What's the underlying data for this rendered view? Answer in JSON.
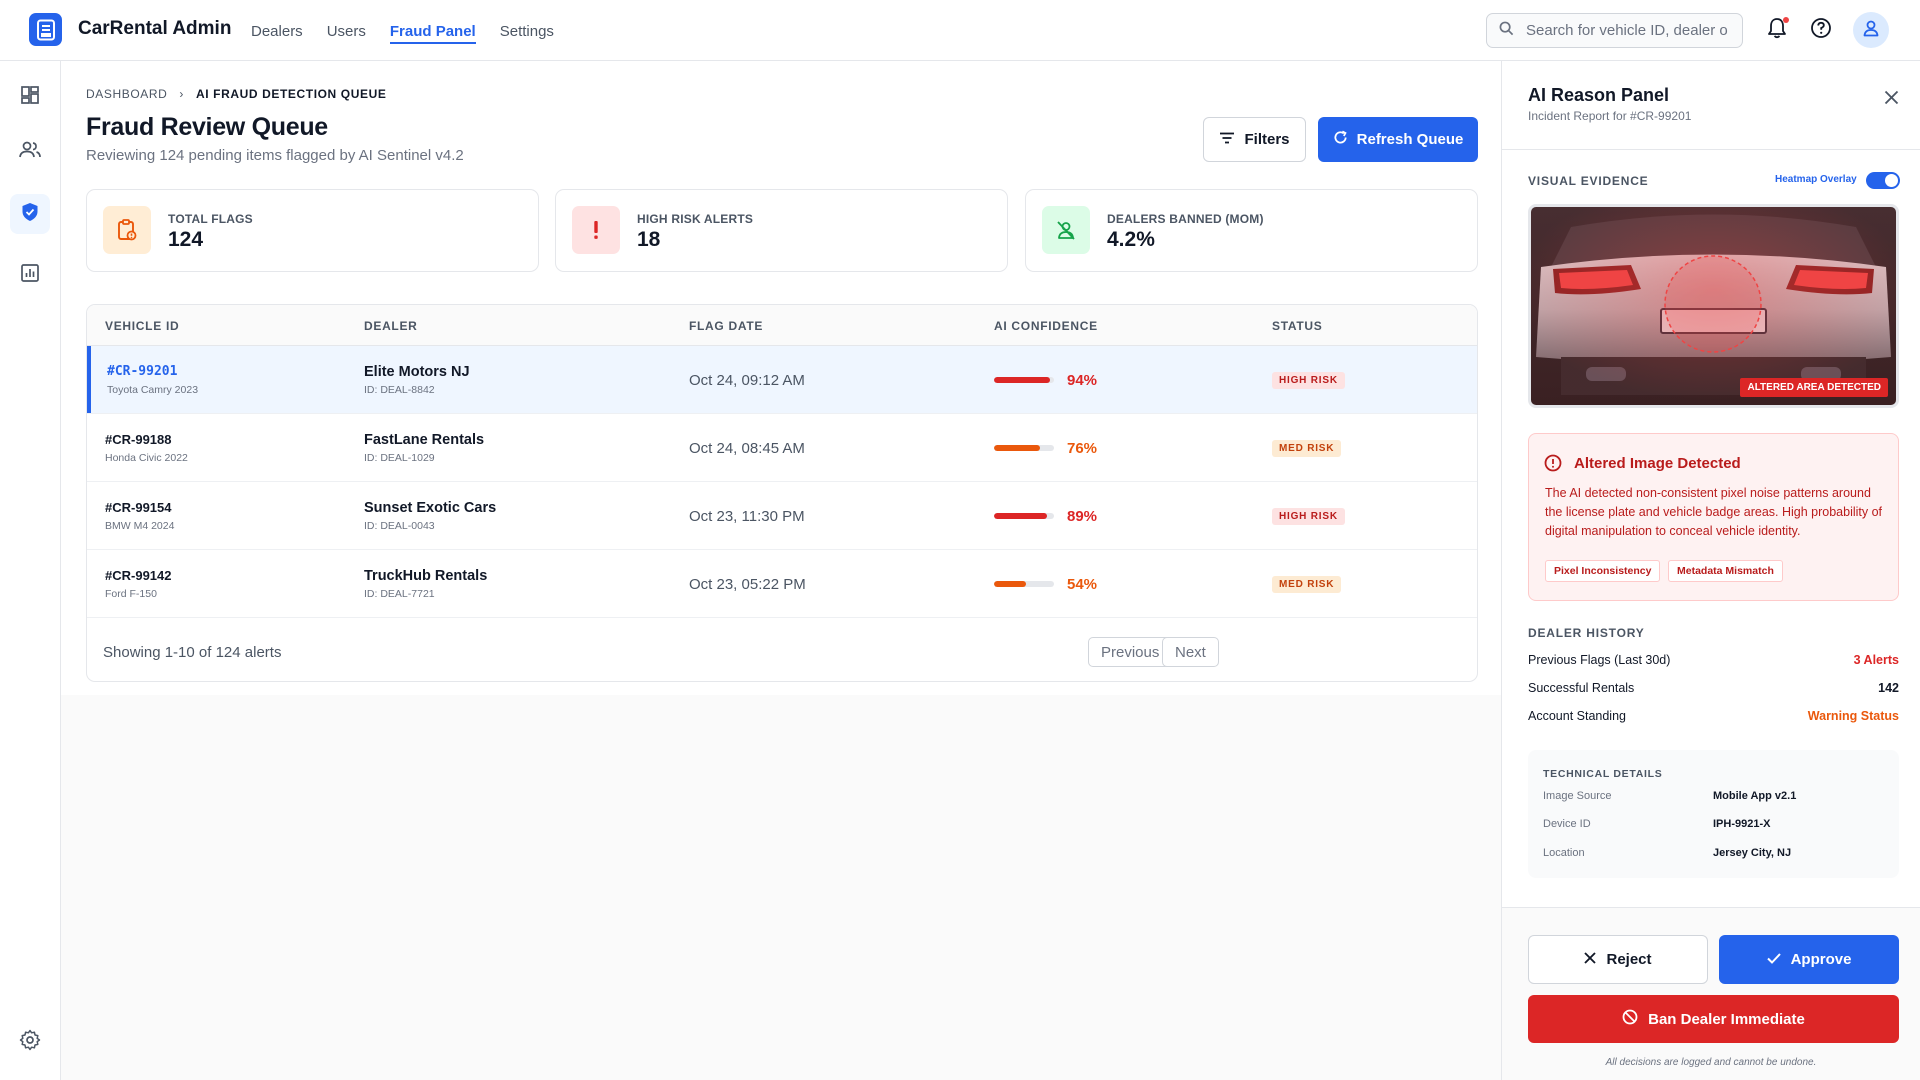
{
  "app": {
    "title": "CarRental Admin"
  },
  "nav": {
    "items": [
      "Dealers",
      "Users",
      "Fraud Panel",
      "Settings"
    ],
    "active": "Fraud Panel"
  },
  "search": {
    "placeholder": "Search for vehicle ID, dealer o"
  },
  "breadcrumb": {
    "root": "DASHBOARD",
    "separator": "›",
    "current": "AI FRAUD DETECTION QUEUE"
  },
  "page": {
    "title": "Fraud Review Queue",
    "subtitle": "Reviewing 124 pending items flagged by AI Sentinel v4.2",
    "filters_label": "Filters",
    "refresh_label": "Refresh Queue"
  },
  "stats": [
    {
      "label": "TOTAL FLAGS",
      "value": "124",
      "icon": "clipboard-alert-icon",
      "color": "#ea580c"
    },
    {
      "label": "HIGH RISK ALERTS",
      "value": "18",
      "icon": "exclamation-icon",
      "color": "#dc2626"
    },
    {
      "label": "DEALERS BANNED (MOM)",
      "value": "4.2%",
      "icon": "user-off-icon",
      "color": "#16a34a"
    }
  ],
  "table": {
    "columns": [
      "VEHICLE ID",
      "DEALER",
      "FLAG DATE",
      "AI CONFIDENCE",
      "STATUS"
    ],
    "rows": [
      {
        "vehicle_id": "#CR-99201",
        "model": "Toyota Camry 2023",
        "dealer": "Elite Motors NJ",
        "dealer_id": "ID: DEAL-8842",
        "date": "Oct 24, 09:12 AM",
        "confidence": "94%",
        "confidence_value": 0.94,
        "status": "HIGH RISK",
        "level": "high",
        "selected": true
      },
      {
        "vehicle_id": "#CR-99188",
        "model": "Honda Civic 2022",
        "dealer": "FastLane Rentals",
        "dealer_id": "ID: DEAL-1029",
        "date": "Oct 24, 08:45 AM",
        "confidence": "76%",
        "confidence_value": 0.76,
        "status": "MED RISK",
        "level": "med",
        "selected": false
      },
      {
        "vehicle_id": "#CR-99154",
        "model": "BMW M4 2024",
        "dealer": "Sunset Exotic Cars",
        "dealer_id": "ID: DEAL-0043",
        "date": "Oct 23, 11:30 PM",
        "confidence": "89%",
        "confidence_value": 0.89,
        "status": "HIGH RISK",
        "level": "high",
        "selected": false
      },
      {
        "vehicle_id": "#CR-99142",
        "model": "Ford F-150",
        "dealer": "TruckHub Rentals",
        "dealer_id": "ID: DEAL-7721",
        "date": "Oct 23, 05:22 PM",
        "confidence": "54%",
        "confidence_value": 0.54,
        "status": "MED RISK",
        "level": "med",
        "selected": false
      }
    ],
    "footer": "Showing 1-10 of 124 alerts",
    "prev_label": "Previous",
    "next_label": "Next"
  },
  "panel": {
    "title": "AI Reason Panel",
    "subtitle": "Incident Report for #CR-99201",
    "visual_evidence_title": "VISUAL EVIDENCE",
    "heatmap_label": "Heatmap Overlay",
    "heatmap_on": true,
    "evidence_badge": "ALTERED AREA DETECTED",
    "alert": {
      "title": "Altered Image Detected",
      "body": "The AI detected non-consistent pixel noise patterns around the license plate and vehicle badge areas. High probability of digital manipulation to conceal vehicle identity.",
      "tags": [
        "Pixel Inconsistency",
        "Metadata Mismatch"
      ]
    },
    "dealer_history": {
      "title": "DEALER HISTORY",
      "rows": [
        {
          "label": "Previous Flags (Last 30d)",
          "value": "3 Alerts",
          "color": "#dc2626"
        },
        {
          "label": "Successful Rentals",
          "value": "142",
          "color": "#111827"
        },
        {
          "label": "Account Standing",
          "value": "Warning Status",
          "color": "#ea580c"
        }
      ]
    },
    "technical": {
      "title": "TECHNICAL DETAILS",
      "rows": [
        {
          "label": "Image Source",
          "value": "Mobile App v2.1"
        },
        {
          "label": "Device ID",
          "value": "IPH-9921-X"
        },
        {
          "label": "Location",
          "value": "Jersey City, NJ"
        }
      ]
    },
    "reject_label": "Reject",
    "approve_label": "Approve",
    "ban_label": "Ban Dealer Immediate",
    "disclaimer": "All decisions are logged and cannot be undone."
  },
  "colors": {
    "accent": "#2563eb",
    "danger": "#dc2626",
    "warning": "#ea580c",
    "success": "#16a34a"
  }
}
